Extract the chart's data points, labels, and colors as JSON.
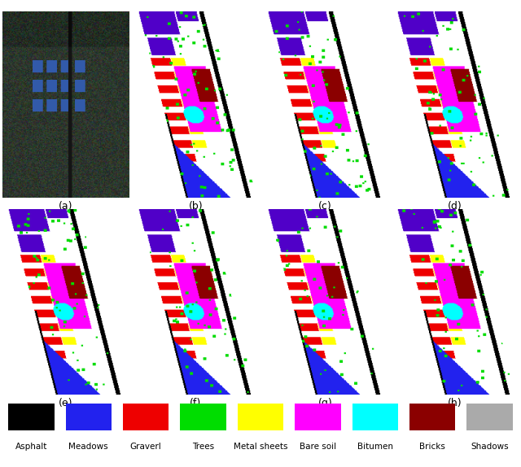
{
  "legend_items": [
    {
      "label": "Asphalt",
      "color": "#000000"
    },
    {
      "label": "Meadows",
      "color": "#2222ee"
    },
    {
      "label": "Graverl",
      "color": "#ee0000"
    },
    {
      "label": "Trees",
      "color": "#00dd00"
    },
    {
      "label": "Metal sheets",
      "color": "#ffff00"
    },
    {
      "label": "Bare soil",
      "color": "#ff00ff"
    },
    {
      "label": "Bitumen",
      "color": "#00ffff"
    },
    {
      "label": "Bricks",
      "color": "#8b0000"
    },
    {
      "label": "Shadows",
      "color": "#aaaaaa"
    }
  ],
  "subplot_labels": [
    "(a)",
    "(b)",
    "(c)",
    "(d)",
    "(e)",
    "(f)",
    "(g)",
    "(h)"
  ],
  "figure_width": 6.4,
  "figure_height": 5.74,
  "dpi": 100,
  "legend_fontsize": 7.5,
  "label_fontsize": 9
}
